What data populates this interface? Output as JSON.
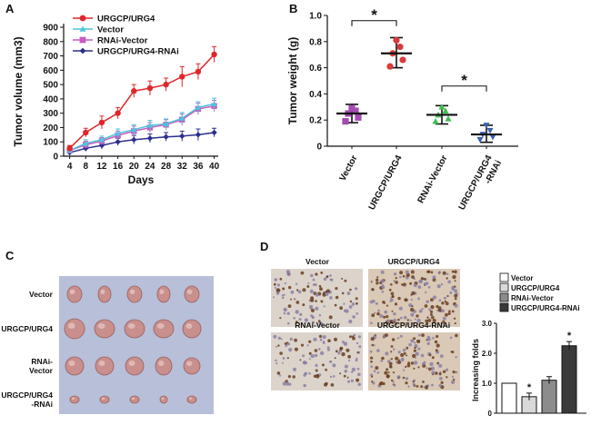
{
  "panels": {
    "a": "A",
    "b": "B",
    "c": "C",
    "d": "D"
  },
  "colors": {
    "urgcp": "#e0262b",
    "vector": "#4fc3dc",
    "rnai_vector": "#c85cc0",
    "urgcp_rnai": "#2b2f8e",
    "scatter_vector": "#a24cb0",
    "scatter_urgcp": "#d93a3a",
    "scatter_rnai_vector": "#3fbf4f",
    "scatter_urgcp_rnai": "#3a5fb3"
  },
  "chart_data": [
    {
      "type": "line",
      "title": "",
      "xlabel": "Days",
      "ylabel": "Tumor volume (mm3)",
      "x": [
        4,
        8,
        12,
        16,
        20,
        24,
        28,
        32,
        36,
        40
      ],
      "ylim": [
        0,
        900
      ],
      "yticks": [
        0,
        100,
        200,
        300,
        400,
        500,
        600,
        700,
        800,
        900
      ],
      "legend_position": "top-left",
      "series": [
        {
          "name": "URGCP/URG4",
          "color_key": "urgcp",
          "marker": "circle",
          "values": [
            55,
            165,
            235,
            300,
            455,
            475,
            500,
            555,
            590,
            710
          ],
          "errors": [
            20,
            30,
            45,
            40,
            45,
            50,
            45,
            70,
            55,
            55
          ]
        },
        {
          "name": "Vector",
          "color_key": "vector",
          "marker": "triangle",
          "values": [
            40,
            90,
            115,
            160,
            185,
            215,
            225,
            265,
            340,
            365
          ],
          "errors": [
            15,
            25,
            25,
            30,
            35,
            35,
            35,
            40,
            40,
            40
          ]
        },
        {
          "name": "RNAi-Vector",
          "color_key": "rnai_vector",
          "marker": "square",
          "values": [
            40,
            80,
            105,
            145,
            175,
            200,
            220,
            255,
            330,
            350
          ],
          "errors": [
            15,
            25,
            25,
            30,
            35,
            35,
            35,
            40,
            40,
            40
          ]
        },
        {
          "name": "URGCP/URG4-RNAi",
          "color_key": "urgcp_rnai",
          "marker": "diamond",
          "values": [
            25,
            55,
            75,
            100,
            115,
            125,
            135,
            140,
            150,
            165
          ],
          "errors": [
            15,
            20,
            25,
            25,
            30,
            30,
            30,
            35,
            40,
            30
          ]
        }
      ]
    },
    {
      "type": "scatter",
      "title": "",
      "xlabel": "",
      "ylabel": "Tumor weight (g)",
      "ylim": [
        0,
        1.0
      ],
      "yticks": [
        "0",
        "0.2",
        "0.4",
        "0.6",
        "0.8",
        "1.0"
      ],
      "ytick_values": [
        0,
        0.2,
        0.4,
        0.6,
        0.8,
        1.0
      ],
      "categories": [
        "Vector",
        "URGCP/URG4",
        "RNAi-Vector",
        "URGCP/URG4\n-RNAi"
      ],
      "category_lines": [
        [
          "Vector"
        ],
        [
          "URGCP/URG4"
        ],
        [
          "RNAi-Vector"
        ],
        [
          "URGCP/URG4",
          "-RNAi"
        ]
      ],
      "groups": [
        {
          "name": "Vector",
          "color_key": "scatter_vector",
          "marker": "square",
          "points": [
            0.19,
            0.22,
            0.25,
            0.27,
            0.29
          ],
          "mean": 0.25,
          "sd_low": 0.18,
          "sd_high": 0.32
        },
        {
          "name": "URGCP/URG4",
          "color_key": "scatter_urgcp",
          "marker": "circle",
          "points": [
            0.61,
            0.66,
            0.71,
            0.76,
            0.81
          ],
          "mean": 0.71,
          "sd_low": 0.6,
          "sd_high": 0.83
        },
        {
          "name": "RNAi-Vector",
          "color_key": "scatter_rnai_vector",
          "marker": "triangle",
          "points": [
            0.19,
            0.21,
            0.24,
            0.27,
            0.3
          ],
          "mean": 0.24,
          "sd_low": 0.17,
          "sd_high": 0.31
        },
        {
          "name": "URGCP/URG4-RNAi",
          "color_key": "scatter_urgcp_rnai",
          "marker": "triangle-down",
          "points": [
            0.05,
            0.07,
            0.09,
            0.12,
            0.16
          ],
          "mean": 0.09,
          "sd_low": 0.03,
          "sd_high": 0.16
        }
      ],
      "annotations": [
        {
          "text": "*",
          "from": 0,
          "to": 1,
          "level": 0.96
        },
        {
          "text": "*",
          "from": 2,
          "to": 3,
          "level": 0.46
        }
      ]
    },
    {
      "type": "bar",
      "title": "",
      "xlabel": "",
      "ylabel": "Increasing folds",
      "ylim": [
        0,
        3.0
      ],
      "yticks": [
        "0",
        "1.0",
        "2.0",
        "3.0"
      ],
      "ytick_values": [
        0,
        1.0,
        2.0,
        3.0
      ],
      "categories": [
        "Vector",
        "URGCP/URG4",
        "RNAi-Vector",
        "URGCP/URG4-RNAi"
      ],
      "values": [
        1.0,
        0.55,
        1.1,
        2.25
      ],
      "errors": [
        0,
        0.12,
        0.12,
        0.14
      ],
      "fills": [
        "#ffffff",
        "#d9d9d9",
        "#8c8c8c",
        "#3a3a3a"
      ],
      "significance": [
        "",
        "*",
        "",
        "*"
      ],
      "legend_position": "top"
    }
  ],
  "photo_c": {
    "row_labels": [
      [
        "Vector"
      ],
      [
        "URGCP/URG4"
      ],
      [
        "RNAi-",
        "Vector"
      ],
      [
        "URGCP/URG4",
        "-RNAi"
      ]
    ]
  },
  "ihc_d": {
    "labels": [
      "Vector",
      "URGCP/URG4",
      "RNAi-Vector",
      "URGCP/URG4-RNAi"
    ]
  }
}
